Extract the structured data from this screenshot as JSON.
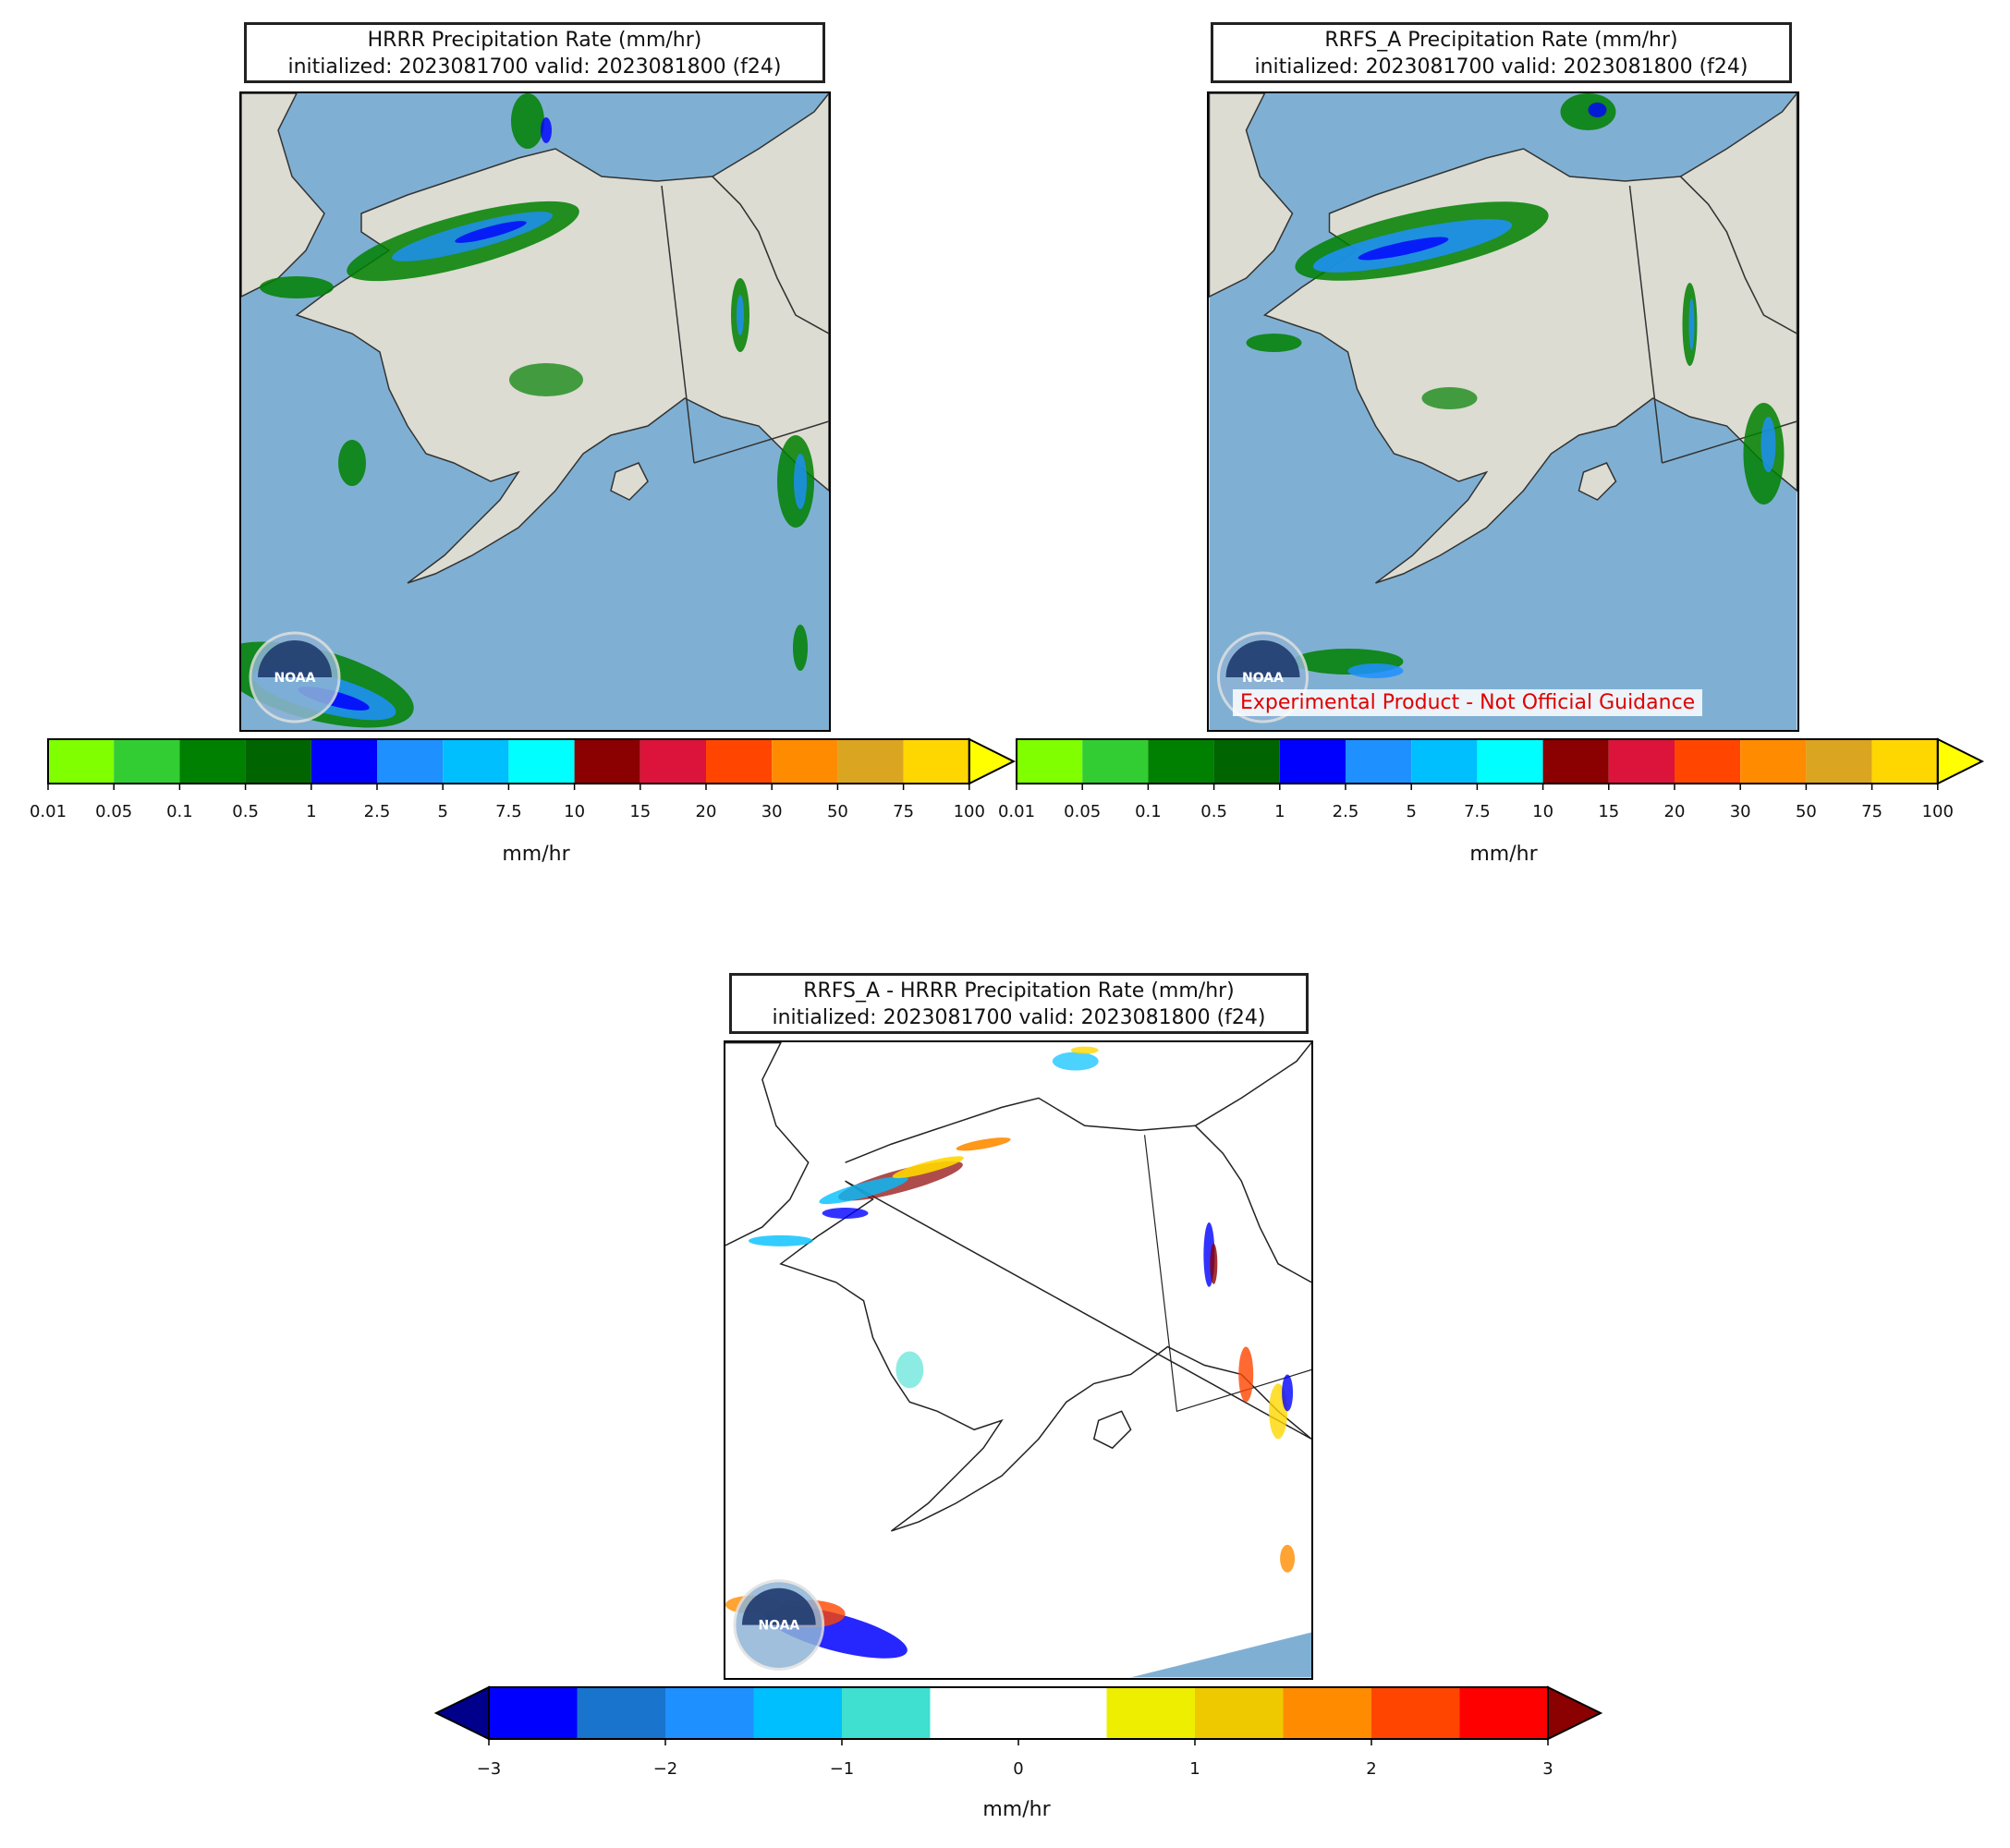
{
  "panels": {
    "hrrr": {
      "title_line1": "HRRR Precipitation Rate (mm/hr)",
      "title_line2": "initialized: 2023081700 valid: 2023081800 (f24)"
    },
    "rrfs": {
      "title_line1": "RRFS_A Precipitation Rate (mm/hr)",
      "title_line2": "initialized: 2023081700 valid: 2023081800 (f24)",
      "watermark": "Experimental Product - Not Official Guidance"
    },
    "diff": {
      "title_line1": "RRFS_A - HRRR Precipitation Rate (mm/hr)",
      "title_line2": "initialized: 2023081700 valid: 2023081800 (f24)"
    }
  },
  "logo": {
    "text": "NOAA",
    "icon": "noaa-logo-icon"
  },
  "precip_colorbar": {
    "unit": "mm/hr",
    "extend": "max",
    "ticks": [
      "0.01",
      "0.05",
      "0.1",
      "0.5",
      "1",
      "2.5",
      "5",
      "7.5",
      "10",
      "15",
      "20",
      "30",
      "50",
      "75",
      "100"
    ],
    "colors": [
      "#7fff00",
      "#32cd32",
      "#008000",
      "#006400",
      "#0000ff",
      "#1e90ff",
      "#00bfff",
      "#00ffff",
      "#8b0000",
      "#dc143c",
      "#ff4500",
      "#ff8c00",
      "#daa520",
      "#ffd700"
    ],
    "extend_color": "#ffff00"
  },
  "diff_colorbar": {
    "unit": "mm/hr",
    "extend": "both",
    "ticks": [
      "−3",
      "−2",
      "−1",
      "0",
      "1",
      "2",
      "3"
    ],
    "colors": [
      "#0000ff",
      "#1874cd",
      "#1e90ff",
      "#00bfff",
      "#40e0d0",
      "#ffffff",
      "#ffffff",
      "#eeee00",
      "#eec900",
      "#ff8c00",
      "#ff4500",
      "#ff0000"
    ],
    "extend_low_color": "#00008b",
    "extend_high_color": "#8b0000"
  },
  "map_colors": {
    "ocean": "#7fb0d3",
    "land": "#dcdcd2",
    "coast": "#333333"
  }
}
